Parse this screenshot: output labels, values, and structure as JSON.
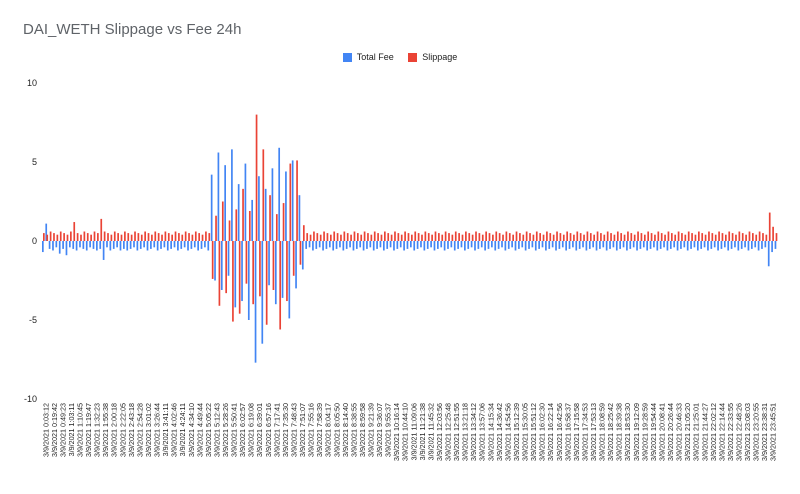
{
  "chart_data": {
    "type": "bar",
    "title": "DAI_WETH Slippage vs Fee 24h",
    "xlabel": "",
    "ylabel": "",
    "ylim": [
      -10,
      10
    ],
    "yticks": [
      10,
      5,
      0,
      -5,
      -10
    ],
    "grid": false,
    "legend_position": "top",
    "series": [
      {
        "name": "Total Fee",
        "color": "#4285f4"
      },
      {
        "name": "Slippage",
        "color": "#ea4335"
      }
    ],
    "x_tick_labels": [
      "3/9/2021 0:03:12",
      "3/9/2021 0:19:42",
      "3/9/2021 0:49:23",
      "3/9/2021 1:03:11",
      "3/9/2021 1:10:45",
      "3/9/2021 1:19:47",
      "3/9/2021 1:32:23",
      "3/9/2021 1:55:38",
      "3/9/2021 2:00:18",
      "3/9/2021 2:22:05",
      "3/9/2021 2:43:18",
      "3/9/2021 2:54:28",
      "3/9/2021 3:01:02",
      "3/9/2021 3:26:44",
      "3/9/2021 3:41:11",
      "3/9/2021 4:02:46",
      "3/9/2021 4:24:11",
      "3/9/2021 4:34:10",
      "3/9/2021 4:49:44",
      "3/9/2021 5:05:22",
      "3/9/2021 5:12:43",
      "3/9/2021 5:28:26",
      "3/9/2021 5:50:41",
      "3/9/2021 6:02:57",
      "3/9/2021 6:19:08",
      "3/9/2021 6:39:01",
      "3/9/2021 6:57:16",
      "3/9/2021 7:17:41",
      "3/9/2021 7:35:30",
      "3/9/2021 7:48:43",
      "3/9/2021 7:51:07",
      "3/9/2021 7:55:16",
      "3/9/2021 7:58:39",
      "3/9/2021 8:04:17",
      "3/9/2021 8:05:50",
      "3/9/2021 8:14:40",
      "3/9/2021 8:38:55",
      "3/9/2021 8:59:58",
      "3/9/2021 9:21:39",
      "3/9/2021 9:36:07",
      "3/9/2021 9:55:37",
      "3/9/2021 10:16:14",
      "3/9/2021 10:44:10",
      "3/9/2021 11:09:06",
      "3/9/2021 11:21:38",
      "3/9/2021 11:45:32",
      "3/9/2021 12:03:56",
      "3/9/2021 12:25:48",
      "3/9/2021 12:51:55",
      "3/9/2021 13:21:18",
      "3/9/2021 13:34:12",
      "3/9/2021 13:57:06",
      "3/9/2021 14:15:34",
      "3/9/2021 14:36:42",
      "3/9/2021 14:54:56",
      "3/9/2021 15:12:39",
      "3/9/2021 15:30:05",
      "3/9/2021 15:51:12",
      "3/9/2021 16:02:30",
      "3/9/2021 16:22:14",
      "3/9/2021 16:42:56",
      "3/9/2021 16:58:37",
      "3/9/2021 17:15:58",
      "3/9/2021 17:34:53",
      "3/9/2021 17:53:13",
      "3/9/2021 18:08:59",
      "3/9/2021 18:25:42",
      "3/9/2021 18:39:38",
      "3/9/2021 18:53:30",
      "3/9/2021 19:12:09",
      "3/9/2021 19:28:59",
      "3/9/2021 19:54:44",
      "3/9/2021 20:08:41",
      "3/9/2021 20:26:44",
      "3/9/2021 20:46:33",
      "3/9/2021 21:05:20",
      "3/9/2021 21:25:01",
      "3/9/2021 21:44:27",
      "3/9/2021 22:02:12",
      "3/9/2021 22:14:44",
      "3/9/2021 22:33:55",
      "3/9/2021 22:48:26",
      "3/9/2021 23:08:03",
      "3/9/2021 23:20:55",
      "3/9/2021 23:38:31",
      "3/9/2021 23:45:51"
    ],
    "total_fee_values": [
      -0.7,
      1.1,
      -0.5,
      -0.6,
      -0.4,
      -0.8,
      -0.5,
      -0.9,
      -0.4,
      -0.5,
      -0.6,
      -0.4,
      -0.5,
      -0.6,
      -0.4,
      -0.5,
      -0.6,
      -0.5,
      -1.2,
      -0.4,
      -0.6,
      -0.5,
      -0.4,
      -0.6,
      -0.5,
      -0.6,
      -0.5,
      -0.4,
      -0.6,
      -0.5,
      -0.4,
      -0.6,
      -0.5,
      -0.4,
      -0.6,
      -0.5,
      -0.4,
      -0.6,
      -0.5,
      -0.4,
      -0.6,
      -0.5,
      -0.4,
      -0.6,
      -0.5,
      -0.4,
      -0.6,
      -0.5,
      -0.4,
      -0.6,
      4.2,
      -2.5,
      5.6,
      -3.1,
      4.8,
      -2.2,
      5.8,
      -4.2,
      3.6,
      -3.8,
      4.9,
      -5.0,
      2.6,
      -7.7,
      4.1,
      -6.5,
      3.3,
      -2.8,
      4.6,
      -4.0,
      5.9,
      -3.6,
      4.4,
      -4.9,
      5.1,
      -3.0,
      2.9,
      -1.8,
      -0.5,
      -0.4,
      -0.6,
      -0.5,
      -0.4,
      -0.6,
      -0.5,
      -0.4,
      -0.6,
      -0.5,
      -0.4,
      -0.6,
      -0.5,
      -0.4,
      -0.6,
      -0.5,
      -0.4,
      -0.6,
      -0.5,
      -0.4,
      -0.6,
      -0.5,
      -0.4,
      -0.6,
      -0.5,
      -0.4,
      -0.6,
      -0.5,
      -0.4,
      -0.6,
      -0.5,
      -0.4,
      -0.6,
      -0.5,
      -0.4,
      -0.6,
      -0.5,
      -0.4,
      -0.6,
      -0.5,
      -0.4,
      -0.6,
      -0.5,
      -0.4,
      -0.6,
      -0.5,
      -0.4,
      -0.6,
      -0.5,
      -0.4,
      -0.6,
      -0.5,
      -0.4,
      -0.6,
      -0.5,
      -0.4,
      -0.6,
      -0.5,
      -0.4,
      -0.6,
      -0.5,
      -0.4,
      -0.6,
      -0.5,
      -0.4,
      -0.6,
      -0.5,
      -0.4,
      -0.6,
      -0.5,
      -0.4,
      -0.6,
      -0.5,
      -0.4,
      -0.6,
      -0.5,
      -0.4,
      -0.6,
      -0.5,
      -0.4,
      -0.6,
      -0.5,
      -0.4,
      -0.6,
      -0.5,
      -0.4,
      -0.6,
      -0.5,
      -0.4,
      -0.6,
      -0.5,
      -0.4,
      -0.6,
      -0.5,
      -0.4,
      -0.6,
      -0.5,
      -0.4,
      -0.6,
      -0.5,
      -0.4,
      -0.6,
      -0.5,
      -0.4,
      -0.6,
      -0.5,
      -0.4,
      -0.6,
      -0.5,
      -0.4,
      -0.6,
      -0.5,
      -0.4,
      -0.6,
      -0.5,
      -0.4,
      -0.6,
      -0.5,
      -0.4,
      -0.6,
      -0.5,
      -0.4,
      -0.6,
      -0.5,
      -0.4,
      -0.6,
      -0.5,
      -0.4,
      -0.6,
      -0.5,
      -0.4,
      -0.6,
      -0.5,
      -0.4,
      -0.6,
      -0.5,
      -0.4,
      -1.6,
      -0.7,
      -0.5
    ],
    "slippage_values": [
      0.5,
      0.4,
      0.6,
      0.5,
      0.4,
      0.6,
      0.5,
      0.4,
      0.6,
      1.2,
      0.5,
      0.4,
      0.6,
      0.5,
      0.4,
      0.6,
      0.5,
      1.4,
      0.6,
      0.5,
      0.4,
      0.6,
      0.5,
      0.4,
      0.6,
      0.5,
      0.4,
      0.6,
      0.5,
      0.4,
      0.6,
      0.5,
      0.4,
      0.6,
      0.5,
      0.4,
      0.6,
      0.5,
      0.4,
      0.6,
      0.5,
      0.4,
      0.6,
      0.5,
      0.4,
      0.6,
      0.5,
      0.4,
      0.6,
      0.5,
      -2.4,
      1.6,
      -4.1,
      2.5,
      -3.3,
      1.3,
      -5.1,
      2.0,
      -4.6,
      3.3,
      -2.7,
      1.9,
      -4.0,
      8.0,
      -3.5,
      5.8,
      -5.3,
      2.9,
      -3.1,
      1.7,
      -5.6,
      2.4,
      -3.8,
      4.9,
      -2.2,
      5.1,
      -1.5,
      1.0,
      0.5,
      0.4,
      0.6,
      0.5,
      0.4,
      0.6,
      0.5,
      0.4,
      0.6,
      0.5,
      0.4,
      0.6,
      0.5,
      0.4,
      0.6,
      0.5,
      0.4,
      0.6,
      0.5,
      0.4,
      0.6,
      0.5,
      0.4,
      0.6,
      0.5,
      0.4,
      0.6,
      0.5,
      0.4,
      0.6,
      0.5,
      0.4,
      0.6,
      0.5,
      0.4,
      0.6,
      0.5,
      0.4,
      0.6,
      0.5,
      0.4,
      0.6,
      0.5,
      0.4,
      0.6,
      0.5,
      0.4,
      0.6,
      0.5,
      0.4,
      0.6,
      0.5,
      0.4,
      0.6,
      0.5,
      0.4,
      0.6,
      0.5,
      0.4,
      0.6,
      0.5,
      0.4,
      0.6,
      0.5,
      0.4,
      0.6,
      0.5,
      0.4,
      0.6,
      0.5,
      0.4,
      0.6,
      0.5,
      0.4,
      0.6,
      0.5,
      0.4,
      0.6,
      0.5,
      0.4,
      0.6,
      0.5,
      0.4,
      0.6,
      0.5,
      0.4,
      0.6,
      0.5,
      0.4,
      0.6,
      0.5,
      0.4,
      0.6,
      0.5,
      0.4,
      0.6,
      0.5,
      0.4,
      0.6,
      0.5,
      0.4,
      0.6,
      0.5,
      0.4,
      0.6,
      0.5,
      0.4,
      0.6,
      0.5,
      0.4,
      0.6,
      0.5,
      0.4,
      0.6,
      0.5,
      0.4,
      0.6,
      0.5,
      0.4,
      0.6,
      0.5,
      0.4,
      0.6,
      0.5,
      0.4,
      0.6,
      0.5,
      0.4,
      0.6,
      0.5,
      0.4,
      0.6,
      0.5,
      0.4,
      0.6,
      0.5,
      0.4,
      1.8,
      0.9,
      0.5
    ]
  }
}
